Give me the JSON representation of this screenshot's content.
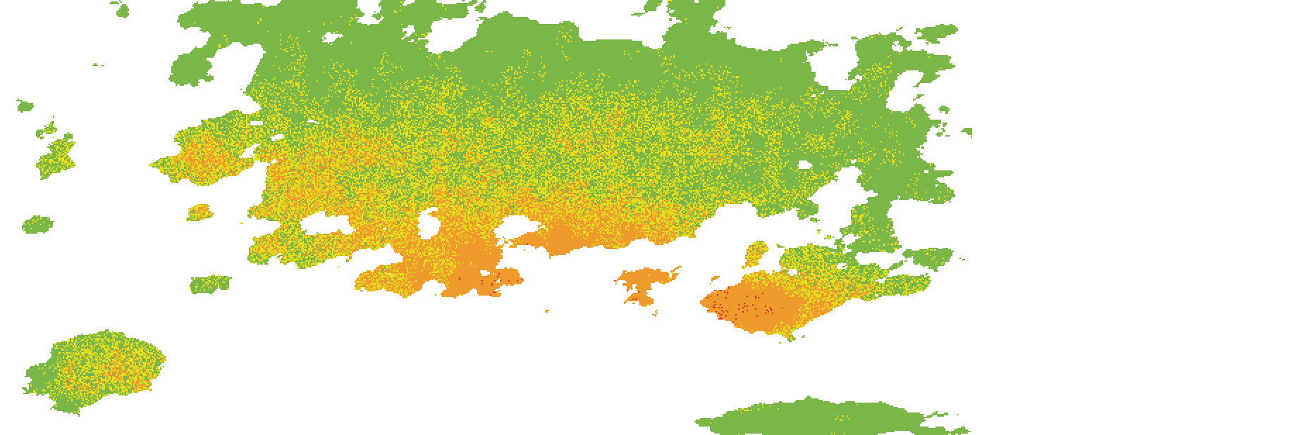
{
  "map": {
    "type": "classified raster",
    "background_color": "#ffffff",
    "classes": [
      {
        "color": "#7ab648"
      },
      {
        "color": "#e2dc1a"
      },
      {
        "color": "#ee9a2c"
      },
      {
        "color": "#e03426"
      }
    ],
    "no_data_color": "#ffffff"
  }
}
